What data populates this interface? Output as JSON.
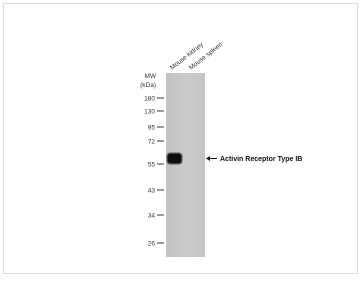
{
  "blot": {
    "lanes": [
      "Mouse kidney",
      "Mouse spleen"
    ],
    "mw_label": [
      "MW",
      "(kDa)"
    ],
    "markers": [
      "180",
      "130",
      "95",
      "72",
      "55",
      "43",
      "34",
      "26"
    ],
    "band_label": "Activin Receptor Type IB"
  }
}
